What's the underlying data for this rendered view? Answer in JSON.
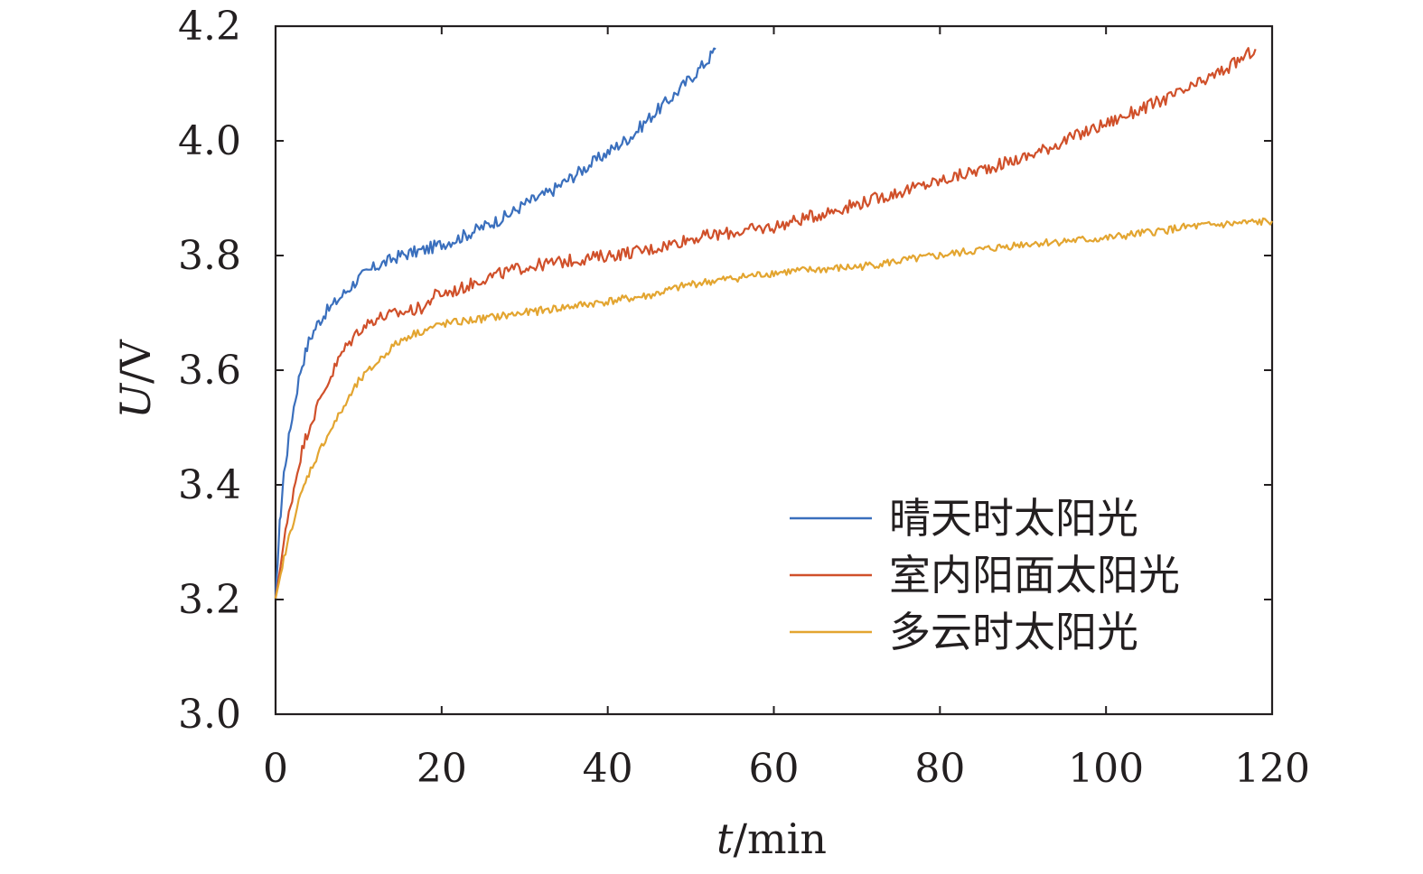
{
  "chart_data": {
    "type": "line",
    "title": "",
    "xlabel": {
      "italic": "t",
      "unit": "/min"
    },
    "ylabel": {
      "italic": "U",
      "unit": "/V"
    },
    "xlim": [
      0,
      120
    ],
    "ylim": [
      3.0,
      4.2
    ],
    "xticks": [
      0,
      20,
      40,
      60,
      80,
      100,
      120
    ],
    "xtick_labels": [
      "0",
      "20",
      "40",
      "60",
      "80",
      "100",
      "120"
    ],
    "yticks": [
      3.0,
      3.2,
      3.4,
      3.6,
      3.8,
      4.0,
      4.2
    ],
    "ytick_labels": [
      "3.0",
      "3.2",
      "3.4",
      "3.6",
      "3.8",
      "4.0",
      "4.2"
    ],
    "grid": false,
    "legend_position": "bottom-right",
    "series": [
      {
        "name": "晴天时太阳光",
        "color": "#3a6fbd",
        "x": [
          0,
          0.5,
          1,
          2,
          3,
          4,
          5,
          6,
          8,
          10,
          12,
          15,
          18,
          20,
          22,
          25,
          28,
          30,
          33,
          35,
          38,
          40,
          43,
          45,
          48,
          50,
          52,
          53
        ],
        "y": [
          3.2,
          3.33,
          3.42,
          3.52,
          3.6,
          3.65,
          3.68,
          3.7,
          3.73,
          3.76,
          3.78,
          3.8,
          3.81,
          3.82,
          3.83,
          3.85,
          3.87,
          3.89,
          3.91,
          3.93,
          3.96,
          3.98,
          4.01,
          4.04,
          4.08,
          4.11,
          4.14,
          4.16
        ]
      },
      {
        "name": "室内阳面太阳光",
        "color": "#d0502a",
        "x": [
          0,
          1,
          2,
          3,
          4,
          6,
          8,
          10,
          12,
          15,
          18,
          19,
          22,
          25,
          30,
          35,
          40,
          45,
          50,
          55,
          60,
          65,
          70,
          75,
          80,
          85,
          90,
          95,
          100,
          105,
          110,
          115,
          118
        ],
        "y": [
          3.2,
          3.3,
          3.38,
          3.45,
          3.5,
          3.57,
          3.63,
          3.67,
          3.69,
          3.7,
          3.71,
          3.73,
          3.74,
          3.76,
          3.78,
          3.79,
          3.8,
          3.81,
          3.83,
          3.84,
          3.85,
          3.87,
          3.89,
          3.91,
          3.93,
          3.95,
          3.97,
          4.0,
          4.03,
          4.06,
          4.09,
          4.13,
          4.16
        ]
      },
      {
        "name": "多云时太阳光",
        "color": "#e3a530",
        "x": [
          0,
          1,
          2,
          3,
          4,
          6,
          8,
          10,
          12,
          14,
          16,
          18,
          20,
          25,
          30,
          35,
          40,
          45,
          50,
          55,
          60,
          70,
          80,
          90,
          100,
          110,
          120
        ],
        "y": [
          3.2,
          3.27,
          3.33,
          3.38,
          3.42,
          3.48,
          3.53,
          3.58,
          3.61,
          3.64,
          3.66,
          3.67,
          3.68,
          3.69,
          3.7,
          3.71,
          3.72,
          3.73,
          3.75,
          3.76,
          3.77,
          3.78,
          3.8,
          3.82,
          3.83,
          3.85,
          3.86
        ]
      }
    ]
  }
}
